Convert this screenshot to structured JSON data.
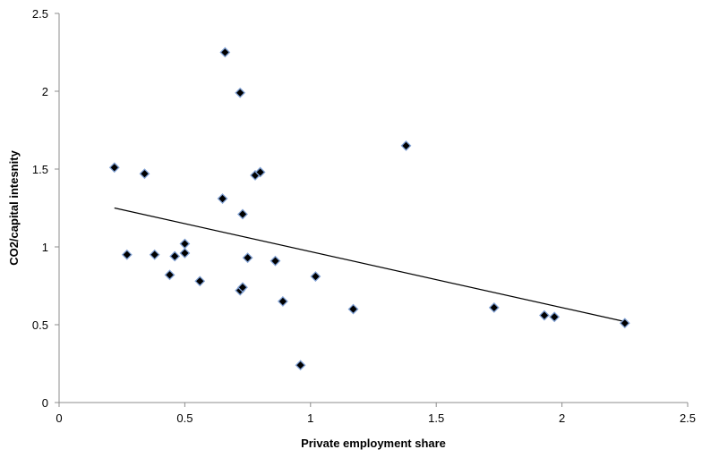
{
  "chart_data": {
    "type": "scatter",
    "title": "",
    "xlabel": "Private employment share",
    "ylabel": "CO2/capital intesnity",
    "xlim": [
      0,
      2.5
    ],
    "ylim": [
      0,
      2.5
    ],
    "x_ticks": [
      "0",
      "0.5",
      "1",
      "1.5",
      "2",
      "2.5"
    ],
    "y_ticks": [
      "0",
      "0.5",
      "1",
      "1.5",
      "2",
      "2.5"
    ],
    "grid": false,
    "legend": "none",
    "marker": "diamond",
    "marker_color": "#000000",
    "marker_edge_color": "#7f9fd2",
    "series": [
      {
        "x": [
          0.22,
          0.27,
          0.34,
          0.38,
          0.44,
          0.46,
          0.5,
          0.5,
          0.56,
          0.65,
          0.66,
          0.72,
          0.72,
          0.73,
          0.73,
          0.75,
          0.78,
          0.8,
          0.86,
          0.89,
          0.96,
          1.02,
          1.17,
          1.38,
          1.73,
          1.93,
          1.97,
          2.25
        ],
        "y": [
          1.51,
          0.95,
          1.47,
          0.95,
          0.82,
          0.94,
          1.02,
          0.96,
          0.78,
          1.31,
          2.25,
          1.99,
          0.72,
          0.74,
          1.21,
          0.93,
          1.46,
          1.48,
          0.91,
          0.65,
          0.24,
          0.81,
          0.6,
          1.65,
          0.61,
          0.56,
          0.55,
          0.51
        ]
      }
    ],
    "trendline": {
      "type": "linear",
      "x": [
        0.22,
        2.25
      ],
      "y": [
        1.25,
        0.52
      ]
    }
  }
}
